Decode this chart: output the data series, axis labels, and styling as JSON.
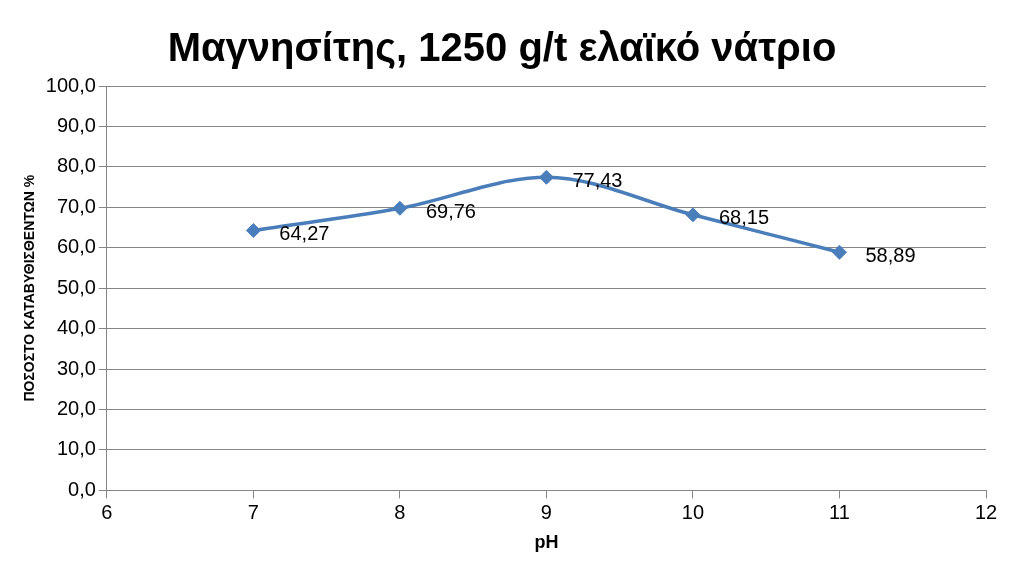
{
  "chart_data": {
    "type": "line",
    "title": "Μαγνησίτης, 1250 g/t ελαϊκό νάτριο",
    "xlabel": "pH",
    "ylabel": "ΠΟΣΟΣΤΟ ΚΑΤΑΒΥΘΙΣΘΕΝΤΩΝ %",
    "x": [
      7,
      8,
      9,
      10,
      11
    ],
    "series": [
      {
        "color": "#4a7ebb",
        "values": [
          64.27,
          69.76,
          77.43,
          68.15,
          58.89
        ],
        "value_labels": [
          "64,27",
          "69,76",
          "77,43",
          "68,15",
          "58,89"
        ]
      }
    ],
    "xlim": [
      6,
      12
    ],
    "xticks": [
      6,
      7,
      8,
      9,
      10,
      11,
      12
    ],
    "ylim": [
      0,
      100
    ],
    "yticks": [
      {
        "value": 0,
        "label": "0,0"
      },
      {
        "value": 10,
        "label": "10,0"
      },
      {
        "value": 20,
        "label": "20,0"
      },
      {
        "value": 30,
        "label": "30,0"
      },
      {
        "value": 40,
        "label": "40,0"
      },
      {
        "value": 50,
        "label": "50,0"
      },
      {
        "value": 60,
        "label": "60,0"
      },
      {
        "value": 70,
        "label": "70,0"
      },
      {
        "value": 80,
        "label": "80,0"
      },
      {
        "value": 90,
        "label": "90,0"
      },
      {
        "value": 100,
        "label": "100,0"
      }
    ],
    "grid": "y",
    "legend": false,
    "marker": "diamond",
    "line_style": "solid"
  }
}
